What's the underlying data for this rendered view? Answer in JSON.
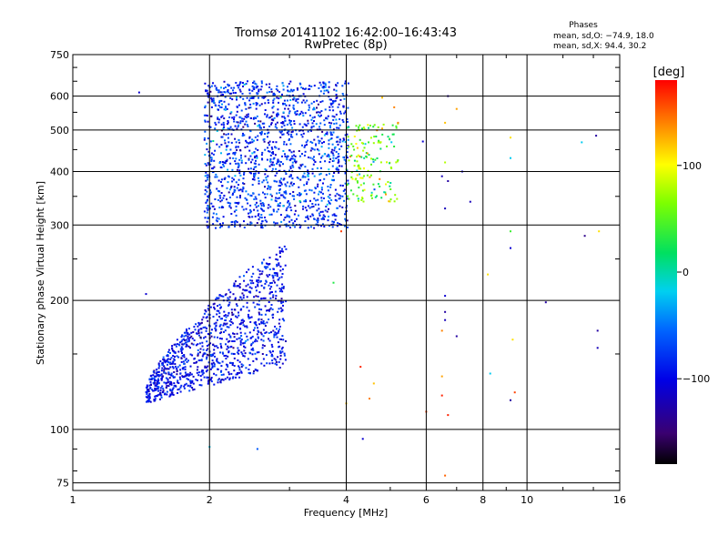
{
  "chart_data": {
    "type": "scatter",
    "title": "Tromsø 20141102 16:42:00–16:43:43",
    "subtitle": "RwPretec (8p)",
    "xlabel": "Frequency [MHz]",
    "ylabel": "Stationary phase Virtual Height [km]",
    "x_scale": "log2",
    "y_scale": "log",
    "xlim": [
      1,
      16
    ],
    "ylim": [
      72,
      750
    ],
    "x_ticks": [
      1,
      2,
      4,
      6,
      8,
      10,
      16
    ],
    "x_tick_labels": [
      "1",
      "2",
      "4",
      "6",
      "8",
      "10",
      "16"
    ],
    "y_ticks": [
      75,
      100,
      200,
      300,
      400,
      500,
      600,
      750
    ],
    "y_tick_labels": [
      "75",
      "100",
      "200",
      "300",
      "400",
      "500",
      "600",
      "750"
    ],
    "grid": true,
    "stats_title": "Phases",
    "stats_line1": "mean, sd,O: −74.9, 18.0",
    "stats_line2": "mean, sd,X:  94.4, 30.2",
    "colorbar": {
      "label": "[deg]",
      "range": [
        -180,
        180
      ],
      "tick_values": [
        100,
        0,
        -100
      ],
      "tick_labels": [
        "100",
        "0",
        "−100"
      ]
    },
    "clusters": [
      {
        "name": "F1-trace",
        "x_range": [
          1.45,
          2.95
        ],
        "y_low_at_start": 115,
        "y_high_at_start": 130,
        "y_low_at_end": 140,
        "y_high_at_end": 275,
        "phase_mean": -95,
        "phase_sd": 18,
        "count": 1100
      },
      {
        "name": "F2-trace",
        "x_range": [
          1.95,
          4.05
        ],
        "y_range": [
          295,
          650
        ],
        "phase_mean": -80,
        "phase_sd": 25,
        "count": 1500
      },
      {
        "name": "F2-X-trace",
        "x_range": [
          4.0,
          5.2
        ],
        "y_range": [
          340,
          520
        ],
        "phase_mean": 55,
        "phase_sd": 40,
        "count": 160
      }
    ],
    "scattered_points": [
      {
        "x": 1.4,
        "y": 612,
        "phase": -110
      },
      {
        "x": 1.45,
        "y": 207,
        "phase": -110
      },
      {
        "x": 2.0,
        "y": 91,
        "phase": -20
      },
      {
        "x": 2.55,
        "y": 90,
        "phase": -60
      },
      {
        "x": 3.75,
        "y": 220,
        "phase": 30
      },
      {
        "x": 3.9,
        "y": 290,
        "phase": 160
      },
      {
        "x": 4.0,
        "y": 115,
        "phase": 120
      },
      {
        "x": 4.3,
        "y": 140,
        "phase": 170
      },
      {
        "x": 4.35,
        "y": 95,
        "phase": -110
      },
      {
        "x": 4.5,
        "y": 118,
        "phase": 140
      },
      {
        "x": 4.6,
        "y": 128,
        "phase": 120
      },
      {
        "x": 6.0,
        "y": 110,
        "phase": 160
      },
      {
        "x": 6.5,
        "y": 120,
        "phase": 170
      },
      {
        "x": 6.5,
        "y": 133,
        "phase": 130
      },
      {
        "x": 6.5,
        "y": 170,
        "phase": 140
      },
      {
        "x": 6.6,
        "y": 205,
        "phase": -110
      },
      {
        "x": 6.6,
        "y": 188,
        "phase": -130
      },
      {
        "x": 6.6,
        "y": 180,
        "phase": -120
      },
      {
        "x": 6.7,
        "y": 108,
        "phase": 170
      },
      {
        "x": 6.6,
        "y": 78,
        "phase": 150
      },
      {
        "x": 6.6,
        "y": 420,
        "phase": 80
      },
      {
        "x": 6.5,
        "y": 390,
        "phase": -120
      },
      {
        "x": 6.7,
        "y": 380,
        "phase": -130
      },
      {
        "x": 6.6,
        "y": 328,
        "phase": -120
      },
      {
        "x": 6.7,
        "y": 600,
        "phase": -130
      },
      {
        "x": 6.6,
        "y": 520,
        "phase": 120
      },
      {
        "x": 7.0,
        "y": 560,
        "phase": 130
      },
      {
        "x": 7.2,
        "y": 400,
        "phase": -110
      },
      {
        "x": 7.5,
        "y": 340,
        "phase": -120
      },
      {
        "x": 7.0,
        "y": 165,
        "phase": -130
      },
      {
        "x": 8.2,
        "y": 230,
        "phase": 110
      },
      {
        "x": 8.3,
        "y": 135,
        "phase": -20
      },
      {
        "x": 9.2,
        "y": 480,
        "phase": 110
      },
      {
        "x": 9.2,
        "y": 430,
        "phase": -20
      },
      {
        "x": 9.2,
        "y": 290,
        "phase": 40
      },
      {
        "x": 9.2,
        "y": 265,
        "phase": -110
      },
      {
        "x": 9.3,
        "y": 162,
        "phase": 110
      },
      {
        "x": 9.4,
        "y": 122,
        "phase": 160
      },
      {
        "x": 9.2,
        "y": 117,
        "phase": -130
      },
      {
        "x": 11.0,
        "y": 198,
        "phase": -130
      },
      {
        "x": 13.2,
        "y": 468,
        "phase": -20
      },
      {
        "x": 13.4,
        "y": 283,
        "phase": -140
      },
      {
        "x": 14.2,
        "y": 485,
        "phase": -130
      },
      {
        "x": 14.3,
        "y": 170,
        "phase": -130
      },
      {
        "x": 14.3,
        "y": 155,
        "phase": -120
      },
      {
        "x": 14.4,
        "y": 290,
        "phase": 110
      },
      {
        "x": 5.9,
        "y": 470,
        "phase": -110
      },
      {
        "x": 5.2,
        "y": 520,
        "phase": 140
      },
      {
        "x": 4.8,
        "y": 595,
        "phase": 120
      },
      {
        "x": 5.1,
        "y": 565,
        "phase": 140
      }
    ]
  }
}
